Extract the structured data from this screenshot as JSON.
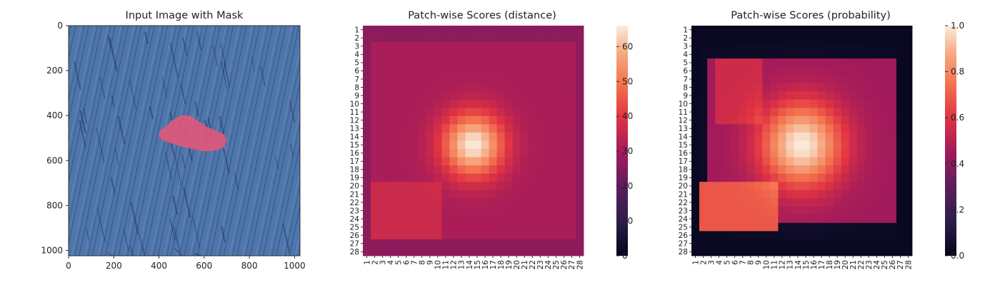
{
  "chart_data": [
    {
      "type": "image",
      "title": "Input Image with Mask",
      "xlim": [
        0,
        1024
      ],
      "ylim": [
        1024,
        0
      ],
      "x_ticks": [
        0,
        200,
        400,
        600,
        800,
        1000
      ],
      "y_ticks": [
        0,
        200,
        400,
        600,
        800,
        1000
      ],
      "colors": {
        "fabric": "#4c72a8",
        "fabric_dark": "#2f4f80",
        "mask": "#e2587a"
      },
      "mask_outline": [
        [
          430,
          450
        ],
        [
          460,
          420
        ],
        [
          500,
          398
        ],
        [
          540,
          402
        ],
        [
          575,
          425
        ],
        [
          610,
          450
        ],
        [
          660,
          470
        ],
        [
          690,
          485
        ],
        [
          700,
          510
        ],
        [
          690,
          540
        ],
        [
          655,
          555
        ],
        [
          600,
          560
        ],
        [
          530,
          545
        ],
        [
          470,
          530
        ],
        [
          420,
          512
        ],
        [
          398,
          490
        ],
        [
          405,
          465
        ]
      ]
    },
    {
      "type": "heatmap",
      "title": "Patch-wise Scores (distance)",
      "rows": [
        "1",
        "2",
        "3",
        "4",
        "5",
        "6",
        "7",
        "8",
        "9",
        "10",
        "11",
        "12",
        "13",
        "14",
        "15",
        "16",
        "17",
        "18",
        "19",
        "20",
        "21",
        "22",
        "23",
        "24",
        "25",
        "26",
        "27",
        "28"
      ],
      "cols": [
        "1",
        "2",
        "3",
        "4",
        "5",
        "6",
        "7",
        "8",
        "9",
        "10",
        "11",
        "12",
        "13",
        "14",
        "15",
        "16",
        "17",
        "18",
        "19",
        "20",
        "21",
        "22",
        "23",
        "24",
        "25",
        "26",
        "27",
        "28"
      ],
      "colorbar": {
        "min": 0,
        "max": 66,
        "ticks": [
          0,
          10,
          20,
          30,
          40,
          50,
          60
        ]
      },
      "model": {
        "background": 31,
        "hotspot_center": [
          15,
          14.5
        ],
        "hotspot_peak": 66,
        "hotspot_sigma": 2.7,
        "border_value": 27,
        "lower_left_region": {
          "rows": [
            20,
            26
          ],
          "cols": [
            2,
            10
          ],
          "value": 36
        }
      }
    },
    {
      "type": "heatmap",
      "title": "Patch-wise Scores (probability)",
      "rows": [
        "1",
        "2",
        "3",
        "4",
        "5",
        "6",
        "7",
        "8",
        "9",
        "10",
        "11",
        "12",
        "13",
        "14",
        "15",
        "16",
        "17",
        "18",
        "19",
        "20",
        "21",
        "22",
        "23",
        "24",
        "25",
        "26",
        "27",
        "28"
      ],
      "cols": [
        "1",
        "2",
        "3",
        "4",
        "5",
        "6",
        "7",
        "8",
        "9",
        "10",
        "11",
        "12",
        "13",
        "14",
        "15",
        "16",
        "17",
        "18",
        "19",
        "20",
        "21",
        "22",
        "23",
        "24",
        "25",
        "26",
        "27",
        "28"
      ],
      "colorbar": {
        "min": 0.0,
        "max": 1.0,
        "ticks": [
          "0.0",
          "0.2",
          "0.4",
          "0.6",
          "0.8",
          "1.0"
        ]
      },
      "model": {
        "background": 0.03,
        "middle_band": 0.45,
        "hotspot_center": [
          15,
          14.5
        ],
        "hotspot_peak": 1.0,
        "hotspot_sigma": 3.6,
        "lower_left_region": {
          "rows": [
            20,
            25
          ],
          "cols": [
            2,
            11
          ],
          "value": 0.68
        }
      }
    }
  ]
}
